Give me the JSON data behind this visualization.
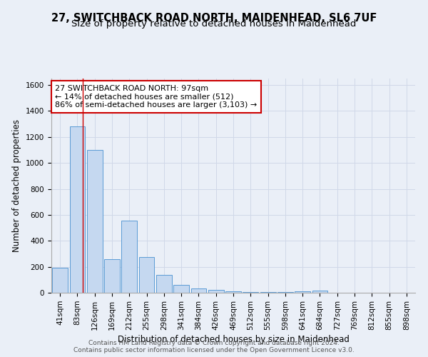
{
  "title": "27, SWITCHBACK ROAD NORTH, MAIDENHEAD, SL6 7UF",
  "subtitle": "Size of property relative to detached houses in Maidenhead",
  "xlabel": "Distribution of detached houses by size in Maidenhead",
  "ylabel": "Number of detached properties",
  "bar_labels": [
    "41sqm",
    "83sqm",
    "126sqm",
    "169sqm",
    "212sqm",
    "255sqm",
    "298sqm",
    "341sqm",
    "384sqm",
    "426sqm",
    "469sqm",
    "512sqm",
    "555sqm",
    "598sqm",
    "641sqm",
    "684sqm",
    "727sqm",
    "769sqm",
    "812sqm",
    "855sqm",
    "898sqm"
  ],
  "bar_values": [
    195,
    1280,
    1100,
    260,
    555,
    275,
    135,
    60,
    35,
    20,
    12,
    8,
    5,
    3,
    10,
    15,
    0,
    0,
    0,
    0,
    0
  ],
  "bar_color": "#c5d8f0",
  "bar_edge_color": "#5b9bd5",
  "grid_color": "#d0d8e8",
  "background_color": "#eaeff7",
  "annotation_text": "27 SWITCHBACK ROAD NORTH: 97sqm\n← 14% of detached houses are smaller (512)\n86% of semi-detached houses are larger (3,103) →",
  "annotation_box_color": "#ffffff",
  "annotation_border_color": "#cc0000",
  "footer_line1": "Contains HM Land Registry data © Crown copyright and database right 2024.",
  "footer_line2": "Contains public sector information licensed under the Open Government Licence v3.0.",
  "ylim": [
    0,
    1650
  ],
  "yticks": [
    0,
    200,
    400,
    600,
    800,
    1000,
    1200,
    1400,
    1600
  ],
  "title_fontsize": 10.5,
  "subtitle_fontsize": 9.5,
  "axis_label_fontsize": 8.5,
  "tick_fontsize": 7.5,
  "annotation_fontsize": 8,
  "footer_fontsize": 6.5
}
